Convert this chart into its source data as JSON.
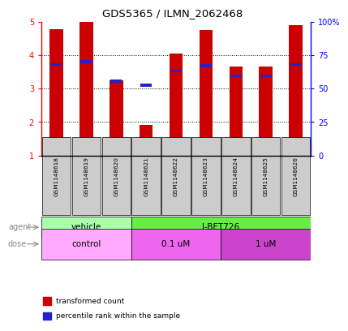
{
  "title": "GDS5365 / ILMN_2062468",
  "samples": [
    "GSM1148618",
    "GSM1148619",
    "GSM1148620",
    "GSM1148621",
    "GSM1148622",
    "GSM1148623",
    "GSM1148624",
    "GSM1148625",
    "GSM1148626"
  ],
  "red_values": [
    4.78,
    5.0,
    3.25,
    1.92,
    4.05,
    4.75,
    3.65,
    3.65,
    4.9
  ],
  "blue_values": [
    3.72,
    3.8,
    3.22,
    3.1,
    3.53,
    3.68,
    3.38,
    3.38,
    3.72
  ],
  "ylim_left": [
    1,
    5
  ],
  "ylim_right": [
    0,
    100
  ],
  "yticks_left": [
    1,
    2,
    3,
    4,
    5
  ],
  "yticks_right": [
    0,
    25,
    50,
    75,
    100
  ],
  "ytick_labels_right": [
    "0",
    "25",
    "50",
    "75",
    "100%"
  ],
  "red_color": "#cc0000",
  "blue_color": "#2222cc",
  "bar_width": 0.45,
  "blue_bar_width": 0.38,
  "blue_bar_height": 0.08,
  "sample_bg_color": "#cccccc",
  "agent_vehicle_color": "#aaffaa",
  "agent_ibet_color": "#66ee44",
  "dose_control_color": "#ffaaff",
  "dose_01um_color": "#ee66ee",
  "dose_1um_color": "#cc44cc",
  "label_color": "#888888",
  "grid_linestyle": "dotted",
  "grid_linewidth": 0.7,
  "grid_color": "black",
  "spine_linewidth": 1.0
}
